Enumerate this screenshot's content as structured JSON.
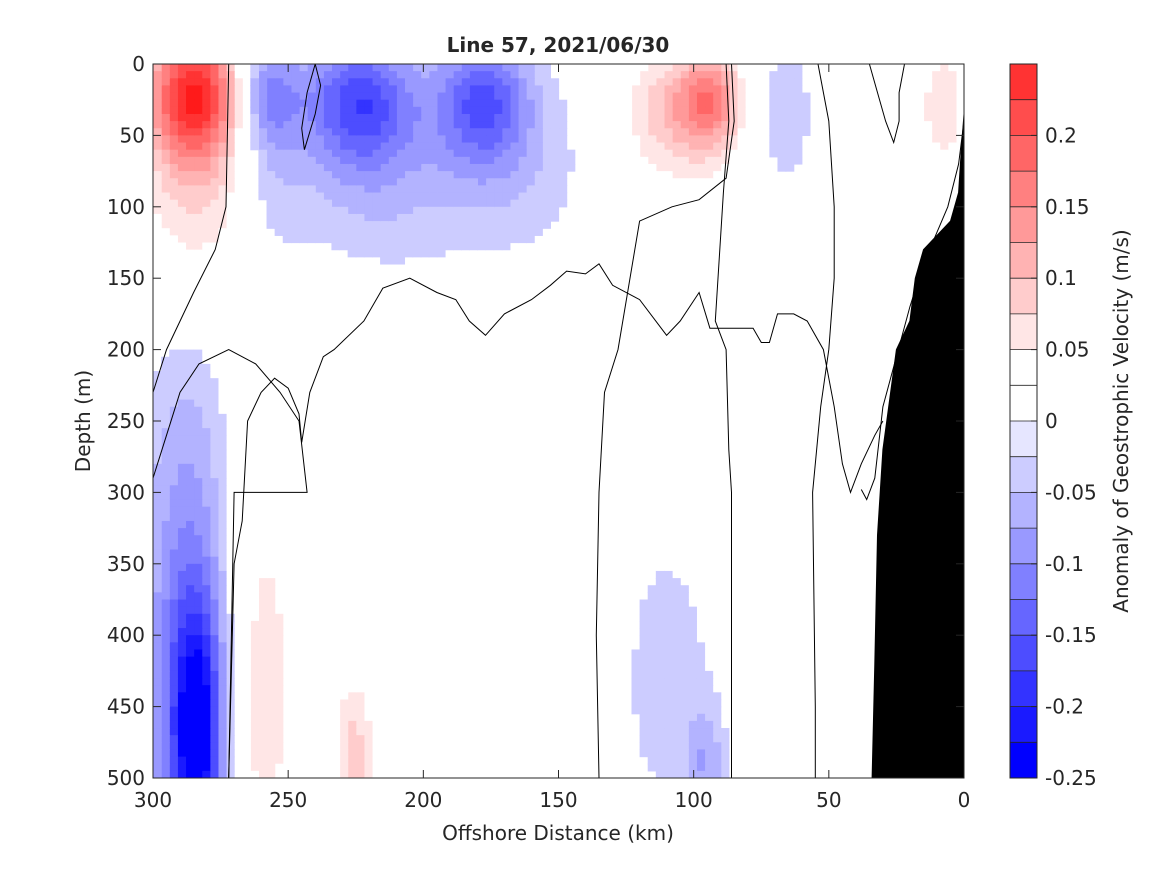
{
  "chart_data": {
    "type": "heatmap",
    "title": "Line 57, 2021/06/30",
    "xlabel": "Offshore Distance (km)",
    "ylabel": "Depth (m)",
    "xlim": [
      300,
      0
    ],
    "ylim": [
      0,
      500
    ],
    "x_direction": "reversed",
    "y_direction": "reversed",
    "x_ticks": [
      300,
      250,
      200,
      150,
      100,
      50,
      0
    ],
    "y_ticks": [
      0,
      50,
      100,
      150,
      200,
      250,
      300,
      350,
      400,
      450,
      500
    ],
    "grid": false,
    "colorbar": {
      "label": "Anomaly of Geostrophic Velocity (m/s)",
      "range": [
        -0.25,
        0.25
      ],
      "step": 0.025,
      "ticks": [
        -0.25,
        -0.2,
        -0.15,
        -0.1,
        -0.05,
        0,
        0.05,
        0.1,
        0.15,
        0.2
      ],
      "tick_labels": [
        "-0.25",
        "-0.2",
        "-0.15",
        "-0.1",
        "-0.05",
        "0",
        "0.05",
        "0.1",
        "0.15",
        "0.2"
      ],
      "colors": [
        "#0000ff",
        "#1a1aff",
        "#3333ff",
        "#4d4dff",
        "#6666ff",
        "#8080ff",
        "#9999ff",
        "#b3b3ff",
        "#ccccff",
        "#e6e6ff",
        "#ffffff",
        "#ffffff",
        "#ffe6e6",
        "#ffcccc",
        "#ffb3b3",
        "#ff9999",
        "#ff8080",
        "#ff6666",
        "#ff4d4d",
        "#ff3333",
        "#ff1a1a"
      ],
      "orientation": "vertical",
      "placement": "right"
    },
    "blobs": [
      {
        "x": 285,
        "y": 20,
        "rx": 17,
        "ry": 48,
        "v": 0.23
      },
      {
        "x": 285,
        "y": 95,
        "rx": 22,
        "ry": 80,
        "v": 0.08
      },
      {
        "x": 258,
        "y": 20,
        "rx": 12,
        "ry": 40,
        "v": -0.09
      },
      {
        "x": 257,
        "y": 75,
        "rx": 13,
        "ry": 75,
        "v": -0.04
      },
      {
        "x": 224,
        "y": 25,
        "rx": 20,
        "ry": 45,
        "v": -0.14
      },
      {
        "x": 222,
        "y": 75,
        "rx": 28,
        "ry": 75,
        "v": -0.05
      },
      {
        "x": 178,
        "y": 25,
        "rx": 17,
        "ry": 45,
        "v": -0.13
      },
      {
        "x": 170,
        "y": 70,
        "rx": 40,
        "ry": 70,
        "v": -0.05
      },
      {
        "x": 110,
        "y": 30,
        "rx": 18,
        "ry": 45,
        "v": 0.07
      },
      {
        "x": 94,
        "y": 25,
        "rx": 12,
        "ry": 35,
        "v": 0.13
      },
      {
        "x": 105,
        "y": 70,
        "rx": 38,
        "ry": 70,
        "v": 0.03
      },
      {
        "x": 67,
        "y": 40,
        "rx": 13,
        "ry": 60,
        "v": -0.05
      },
      {
        "x": 8,
        "y": 30,
        "rx": 10,
        "ry": 50,
        "v": 0.07
      },
      {
        "x": 45,
        "y": 20,
        "rx": 6,
        "ry": 30,
        "v": 0.03
      },
      {
        "x": 288,
        "y": 420,
        "rx": 17,
        "ry": 220,
        "v": -0.11
      },
      {
        "x": 284,
        "y": 470,
        "rx": 9,
        "ry": 90,
        "v": -0.19
      },
      {
        "x": 260,
        "y": 440,
        "rx": 13,
        "ry": 160,
        "v": 0.07
      },
      {
        "x": 224,
        "y": 380,
        "rx": 20,
        "ry": 180,
        "v": 0.03
      },
      {
        "x": 226,
        "y": 490,
        "rx": 7,
        "ry": 50,
        "v": 0.07
      },
      {
        "x": 166,
        "y": 400,
        "rx": 24,
        "ry": 130,
        "v": 0.03
      },
      {
        "x": 110,
        "y": 430,
        "rx": 22,
        "ry": 130,
        "v": -0.035
      },
      {
        "x": 96,
        "y": 490,
        "rx": 7,
        "ry": 40,
        "v": -0.06
      },
      {
        "x": 70,
        "y": 490,
        "rx": 3,
        "ry": 30,
        "v": 0.03
      }
    ],
    "zero_contours": [
      [
        [
          272,
          0
        ],
        [
          273,
          100
        ],
        [
          277,
          130
        ],
        [
          285,
          160
        ],
        [
          295,
          200
        ],
        [
          300,
          230
        ]
      ],
      [
        [
          300,
          290
        ],
        [
          295,
          260
        ],
        [
          290,
          230
        ],
        [
          283,
          210
        ],
        [
          272,
          200
        ],
        [
          262,
          210
        ],
        [
          253,
          230
        ],
        [
          246,
          250
        ],
        [
          243,
          300
        ],
        [
          270,
          300
        ],
        [
          272,
          500
        ]
      ],
      [
        [
          272,
          500
        ],
        [
          270,
          350
        ],
        [
          267,
          320
        ],
        [
          265,
          250
        ],
        [
          260,
          230
        ],
        [
          255,
          220
        ],
        [
          250,
          227
        ],
        [
          246,
          245
        ],
        [
          245,
          265
        ],
        [
          242,
          230
        ],
        [
          237,
          205
        ],
        [
          233,
          200
        ],
        [
          222,
          180
        ],
        [
          215,
          157
        ],
        [
          205,
          150
        ],
        [
          195,
          160
        ],
        [
          188,
          165
        ],
        [
          183,
          180
        ],
        [
          177,
          190
        ],
        [
          170,
          175
        ],
        [
          160,
          165
        ],
        [
          153,
          155
        ],
        [
          147,
          145
        ],
        [
          140,
          147
        ],
        [
          135,
          140
        ],
        [
          130,
          155
        ],
        [
          120,
          165
        ],
        [
          110,
          190
        ],
        [
          105,
          180
        ],
        [
          98,
          160
        ],
        [
          94,
          185
        ],
        [
          85,
          185
        ],
        [
          78,
          185
        ],
        [
          75,
          195
        ],
        [
          72,
          195
        ],
        [
          69,
          175
        ],
        [
          63,
          175
        ],
        [
          58,
          180
        ],
        [
          52,
          200
        ],
        [
          48,
          240
        ],
        [
          45,
          280
        ],
        [
          42,
          300
        ],
        [
          38,
          280
        ],
        [
          33,
          260
        ],
        [
          30,
          250
        ]
      ],
      [
        [
          135,
          500
        ],
        [
          136,
          400
        ],
        [
          135,
          300
        ],
        [
          133,
          230
        ],
        [
          128,
          200
        ],
        [
          120,
          110
        ],
        [
          108,
          100
        ],
        [
          98,
          95
        ],
        [
          88,
          80
        ],
        [
          85,
          40
        ],
        [
          86,
          0
        ]
      ],
      [
        [
          86,
          500
        ],
        [
          86,
          300
        ],
        [
          87,
          270
        ],
        [
          88,
          200
        ],
        [
          90,
          190
        ],
        [
          92,
          180
        ],
        [
          89,
          90
        ],
        [
          87,
          40
        ],
        [
          88,
          0
        ]
      ],
      [
        [
          55,
          500
        ],
        [
          55,
          450
        ],
        [
          56,
          300
        ],
        [
          53,
          240
        ],
        [
          50,
          200
        ],
        [
          48,
          150
        ],
        [
          48,
          100
        ],
        [
          50,
          40
        ],
        [
          54,
          0
        ]
      ],
      [
        [
          0,
          40
        ],
        [
          2,
          70
        ],
        [
          6,
          100
        ],
        [
          15,
          140
        ],
        [
          20,
          170
        ],
        [
          30,
          240
        ],
        [
          33,
          290
        ],
        [
          36,
          305
        ],
        [
          38,
          298
        ]
      ],
      [
        [
          35,
          0
        ],
        [
          32,
          20
        ],
        [
          29,
          40
        ],
        [
          26,
          55
        ],
        [
          24,
          40
        ],
        [
          24,
          20
        ],
        [
          22,
          0
        ]
      ],
      [
        [
          240,
          0
        ],
        [
          243,
          20
        ],
        [
          245,
          45
        ],
        [
          244,
          60
        ],
        [
          240,
          35
        ],
        [
          238,
          15
        ],
        [
          240,
          0
        ]
      ]
    ],
    "landmask": [
      [
        0,
        35
      ],
      [
        0,
        500
      ],
      [
        34,
        500
      ],
      [
        33,
        420
      ],
      [
        32,
        330
      ],
      [
        30,
        270
      ],
      [
        25,
        200
      ],
      [
        20,
        180
      ],
      [
        18,
        150
      ],
      [
        15,
        130
      ],
      [
        10,
        120
      ],
      [
        5,
        110
      ],
      [
        2,
        90
      ],
      [
        1,
        60
      ],
      [
        0,
        35
      ]
    ]
  }
}
